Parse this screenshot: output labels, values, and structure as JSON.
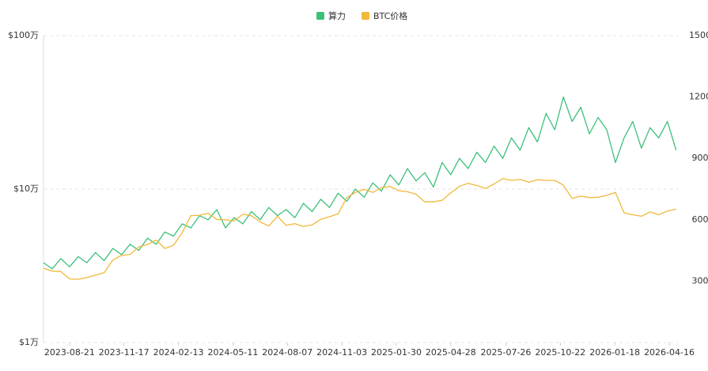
{
  "chart_data": {
    "type": "line",
    "legend": "top",
    "ylog": true,
    "grid": true,
    "x": [
      "2023-07-10",
      "2023-07-24",
      "2023-08-07",
      "2023-08-21",
      "2023-09-04",
      "2023-09-18",
      "2023-10-02",
      "2023-10-16",
      "2023-10-30",
      "2023-11-13",
      "2023-11-27",
      "2023-12-11",
      "2023-12-25",
      "2024-01-08",
      "2024-01-22",
      "2024-02-05",
      "2024-02-19",
      "2024-03-04",
      "2024-03-18",
      "2024-04-01",
      "2024-04-15",
      "2024-04-29",
      "2024-05-13",
      "2024-05-27",
      "2024-06-10",
      "2024-06-24",
      "2024-07-08",
      "2024-07-22",
      "2024-08-05",
      "2024-08-19",
      "2024-09-02",
      "2024-09-16",
      "2024-09-30",
      "2024-10-14",
      "2024-10-28",
      "2024-11-11",
      "2024-11-25",
      "2024-12-09",
      "2024-12-23",
      "2025-01-06",
      "2025-01-20",
      "2025-02-03",
      "2025-02-17",
      "2025-03-03",
      "2025-03-17",
      "2025-03-31",
      "2025-04-14",
      "2025-04-28",
      "2025-05-12",
      "2025-05-26",
      "2025-06-09",
      "2025-06-23",
      "2025-07-07",
      "2025-07-21",
      "2025-08-04",
      "2025-08-18",
      "2025-09-01",
      "2025-09-15",
      "2025-09-29",
      "2025-10-13",
      "2025-10-27",
      "2025-11-10",
      "2025-11-24",
      "2025-12-08",
      "2025-12-22",
      "2026-01-05",
      "2026-01-19",
      "2026-02-02",
      "2026-02-16",
      "2026-03-02",
      "2026-03-16",
      "2026-03-30",
      "2026-04-13",
      "2026-04-27"
    ],
    "xlim": [
      "2023-07-10",
      "2026-04-30"
    ],
    "xticks": [
      "2023-08-21",
      "2023-11-17",
      "2024-02-13",
      "2024-05-11",
      "2024-08-07",
      "2024-11-03",
      "2025-01-30",
      "2025-04-28",
      "2025-07-26",
      "2025-10-22",
      "2026-01-18",
      "2026-04-16"
    ],
    "ylim": [
      10000,
      1000000
    ],
    "yticks": [
      {
        "value": 10000,
        "label": "$1万"
      },
      {
        "value": 100000,
        "label": "$10万"
      },
      {
        "value": 1000000,
        "label": "$100万"
      }
    ],
    "y2lim": [
      0,
      1500
    ],
    "y2ticks": [
      300,
      600,
      900,
      1200,
      1500
    ],
    "series": [
      {
        "name": "算力",
        "color": "#3cc07a",
        "axis": "y2",
        "values": [
          390,
          360,
          410,
          370,
          420,
          390,
          440,
          400,
          460,
          430,
          480,
          450,
          510,
          480,
          540,
          520,
          580,
          560,
          620,
          600,
          650,
          560,
          610,
          580,
          640,
          600,
          660,
          620,
          650,
          610,
          680,
          640,
          700,
          660,
          730,
          690,
          750,
          710,
          780,
          740,
          820,
          770,
          850,
          790,
          830,
          760,
          880,
          820,
          900,
          850,
          930,
          880,
          960,
          900,
          1000,
          940,
          1050,
          980,
          1120,
          1040,
          1200,
          1080,
          1150,
          1020,
          1100,
          1040,
          880,
          1000,
          1080,
          950,
          1050,
          1000,
          1080,
          940
        ]
      },
      {
        "name": "BTC价格",
        "color": "#f0b93a",
        "axis": "y",
        "values": [
          30500,
          29200,
          29000,
          26000,
          25800,
          26500,
          27500,
          28500,
          34500,
          37000,
          37500,
          42000,
          43500,
          46500,
          41000,
          43000,
          52000,
          67000,
          67500,
          69500,
          63500,
          63000,
          62000,
          68500,
          67000,
          61000,
          57500,
          66500,
          58000,
          59500,
          57000,
          58500,
          63500,
          66000,
          69000,
          88000,
          95000,
          99500,
          95000,
          102000,
          104000,
          97500,
          96000,
          92500,
          82500,
          82500,
          84500,
          94500,
          104000,
          109000,
          105500,
          101000,
          108000,
          117000,
          114000,
          115500,
          111000,
          115000,
          114000,
          114000,
          106000,
          87000,
          90000,
          88000,
          88500,
          91000,
          95000,
          70000,
          68000,
          66500,
          71000,
          68000,
          72000,
          74000
        ]
      }
    ]
  }
}
